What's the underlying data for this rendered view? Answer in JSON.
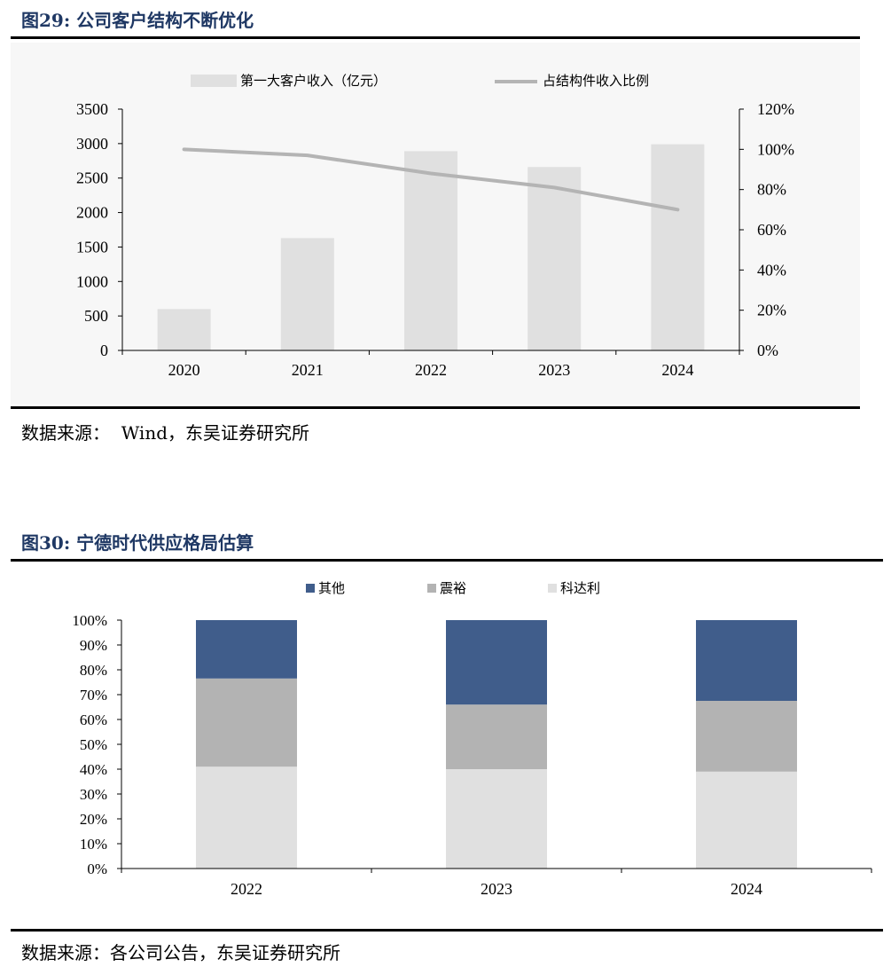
{
  "figure1": {
    "title": "图29:  公司客户结构不断优化",
    "source": "数据来源：  Wind，东吴证券研究所",
    "chart_data": {
      "type": "bar",
      "categories": [
        "2020",
        "2021",
        "2022",
        "2023",
        "2024"
      ],
      "series": [
        {
          "name": "第一大客户收入（亿元）",
          "type": "bar",
          "axis": "left",
          "color": "#e0e0e0",
          "values": [
            600,
            1630,
            2890,
            2660,
            2990
          ]
        },
        {
          "name": "占结构件收入比例",
          "type": "line",
          "axis": "right",
          "color": "#b4b4b4",
          "values": [
            1.0,
            0.97,
            0.88,
            0.81,
            0.7
          ]
        }
      ],
      "ylim_left": [
        0,
        3500
      ],
      "yticks_left": [
        "0",
        "500",
        "1000",
        "1500",
        "2000",
        "2500",
        "3000",
        "3500"
      ],
      "ylim_right": [
        0,
        1.2
      ],
      "yticks_right": [
        "0%",
        "20%",
        "40%",
        "60%",
        "80%",
        "100%",
        "120%"
      ],
      "legend": "top",
      "grid": false
    }
  },
  "figure2": {
    "title": "图30:  宁德时代供应格局估算",
    "source": "数据来源：各公司公告，东吴证券研究所",
    "chart_data": {
      "type": "bar",
      "stacked": true,
      "categories": [
        "2022",
        "2023",
        "2024"
      ],
      "series": [
        {
          "name": "科达利",
          "color": "#e0e0e0",
          "values": [
            0.41,
            0.4,
            0.39
          ]
        },
        {
          "name": "震裕",
          "color": "#b3b3b3",
          "values": [
            0.355,
            0.26,
            0.285
          ]
        },
        {
          "name": "其他",
          "color": "#405d8b",
          "values": [
            0.235,
            0.34,
            0.325
          ]
        }
      ],
      "legend_order": [
        "其他",
        "震裕",
        "科达利"
      ],
      "ylim": [
        0,
        1
      ],
      "yticks": [
        "0%",
        "10%",
        "20%",
        "30%",
        "40%",
        "50%",
        "60%",
        "70%",
        "80%",
        "90%",
        "100%"
      ],
      "legend": "top",
      "grid": false
    }
  }
}
